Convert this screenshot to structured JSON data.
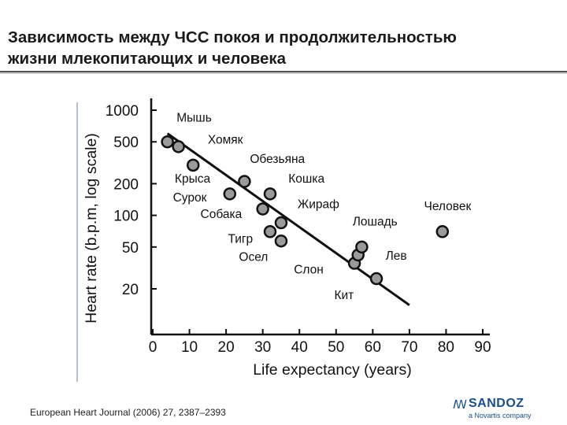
{
  "slide": {
    "title_line1": "Зависимость между ЧСС покоя и продолжительностью",
    "title_line2": "жизни млекопитающих и человека",
    "citation": "European Heart Journal (2006) 27, 2387–2393",
    "brand_name": "SANDOZ",
    "brand_tagline": "a Novartis company",
    "brand_mark": "sandoz-swirl-icon"
  },
  "chart_data": {
    "type": "scatter",
    "title": "",
    "xlabel": "Life expectancy (years)",
    "ylabel": "Heart rate (b.p.m, log scale)",
    "xlim": [
      0,
      90
    ],
    "ylim": [
      10,
      1000
    ],
    "yscale": "log",
    "x_ticks": [
      0,
      10,
      20,
      30,
      40,
      50,
      60,
      70,
      80,
      90
    ],
    "y_ticks": [
      20,
      50,
      100,
      200,
      500,
      1000
    ],
    "grid": false,
    "colors": {
      "marker_fill": "#9a9a9a",
      "marker_edge": "#111111",
      "trend": "#111111",
      "axis": "#111111"
    },
    "points": [
      {
        "x": 4,
        "y": 500
      },
      {
        "x": 7,
        "y": 450
      },
      {
        "x": 11,
        "y": 300
      },
      {
        "x": 21,
        "y": 160
      },
      {
        "x": 25,
        "y": 210
      },
      {
        "x": 30,
        "y": 115
      },
      {
        "x": 32,
        "y": 160
      },
      {
        "x": 32,
        "y": 70
      },
      {
        "x": 35,
        "y": 85
      },
      {
        "x": 35,
        "y": 57
      },
      {
        "x": 55,
        "y": 35
      },
      {
        "x": 56,
        "y": 42
      },
      {
        "x": 57,
        "y": 50
      },
      {
        "x": 61,
        "y": 25
      },
      {
        "x": 79,
        "y": 70
      }
    ],
    "trend_line": {
      "x": [
        4,
        70
      ],
      "y": [
        600,
        14
      ]
    },
    "annotations": [
      {
        "text": "Мышь",
        "x": 6.5,
        "y": 780
      },
      {
        "text": "Хомяк",
        "x": 15,
        "y": 480
      },
      {
        "text": "Обезьяна",
        "x": 26.5,
        "y": 315
      },
      {
        "text": "Крыса",
        "x": 6,
        "y": 205
      },
      {
        "text": "Кошка",
        "x": 37,
        "y": 205
      },
      {
        "text": "Сурок",
        "x": 5.5,
        "y": 135
      },
      {
        "text": "Жираф",
        "x": 39.5,
        "y": 117
      },
      {
        "text": "Человек",
        "x": 74,
        "y": 112
      },
      {
        "text": "Собака",
        "x": 13,
        "y": 94
      },
      {
        "text": "Лошадь",
        "x": 54.5,
        "y": 80
      },
      {
        "text": "Тигр",
        "x": 20.5,
        "y": 55
      },
      {
        "text": "Лев",
        "x": 63.5,
        "y": 38
      },
      {
        "text": "Осел",
        "x": 23.5,
        "y": 37
      },
      {
        "text": "Слон",
        "x": 38.5,
        "y": 28
      },
      {
        "text": "Кит",
        "x": 49.5,
        "y": 16
      }
    ]
  }
}
